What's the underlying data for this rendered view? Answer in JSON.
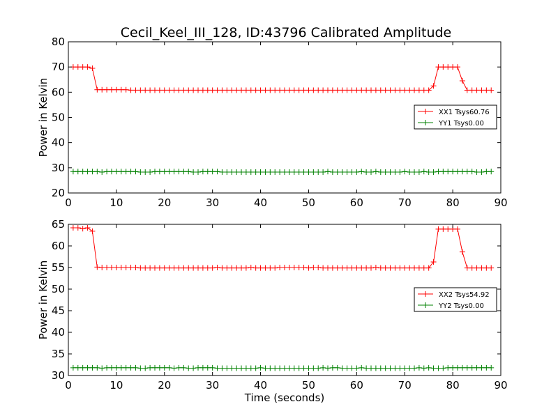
{
  "title": "Cecil_Keel_III_128, ID:43796 Calibrated Amplitude",
  "chart_data": [
    {
      "type": "line",
      "xlabel": "",
      "ylabel": "Power in Kelvin",
      "xlim": [
        0,
        90
      ],
      "ylim": [
        20,
        80
      ],
      "xticks": [
        0,
        10,
        20,
        30,
        40,
        50,
        60,
        70,
        80,
        90
      ],
      "yticks": [
        20,
        30,
        40,
        50,
        60,
        70,
        80
      ],
      "grid": false,
      "legend_position": "center-right",
      "x": [
        1,
        2,
        3,
        4,
        5,
        6,
        7,
        8,
        9,
        10,
        11,
        12,
        13,
        14,
        15,
        16,
        17,
        18,
        19,
        20,
        21,
        22,
        23,
        24,
        25,
        26,
        27,
        28,
        29,
        30,
        31,
        32,
        33,
        34,
        35,
        36,
        37,
        38,
        39,
        40,
        41,
        42,
        43,
        44,
        45,
        46,
        47,
        48,
        49,
        50,
        51,
        52,
        53,
        54,
        55,
        56,
        57,
        58,
        59,
        60,
        61,
        62,
        63,
        64,
        65,
        66,
        67,
        68,
        69,
        70,
        71,
        72,
        73,
        74,
        75,
        76,
        77,
        78,
        79,
        80,
        81,
        82,
        83,
        84,
        85,
        86,
        87,
        88
      ],
      "series": [
        {
          "name": "XX1 Tsys60.76",
          "color": "#ff0000",
          "values": [
            70,
            70,
            70,
            70,
            69.5,
            61,
            61,
            61,
            61,
            61,
            61,
            61,
            60.8,
            60.8,
            60.8,
            60.8,
            60.8,
            60.8,
            60.8,
            60.8,
            60.8,
            60.8,
            60.8,
            60.8,
            60.8,
            60.8,
            60.8,
            60.8,
            60.8,
            60.8,
            60.8,
            60.8,
            60.8,
            60.8,
            60.8,
            60.8,
            60.8,
            60.8,
            60.8,
            60.8,
            60.8,
            60.8,
            60.8,
            60.8,
            60.8,
            60.8,
            60.8,
            60.8,
            60.8,
            60.8,
            60.8,
            60.8,
            60.8,
            60.8,
            60.8,
            60.8,
            60.8,
            60.8,
            60.8,
            60.8,
            60.8,
            60.8,
            60.8,
            60.8,
            60.8,
            60.8,
            60.8,
            60.8,
            60.8,
            60.8,
            60.8,
            60.8,
            60.8,
            60.8,
            60.8,
            62.5,
            70,
            70,
            70,
            70,
            70,
            64.5,
            60.8,
            60.8,
            60.8,
            60.8,
            60.8,
            60.8
          ]
        },
        {
          "name": "YY1 Tsys0.00",
          "color": "#008000",
          "values": [
            28.5,
            28.5,
            28.5,
            28.5,
            28.5,
            28.5,
            28.3,
            28.5,
            28.5,
            28.5,
            28.5,
            28.5,
            28.5,
            28.5,
            28.3,
            28.3,
            28.3,
            28.5,
            28.5,
            28.5,
            28.5,
            28.5,
            28.5,
            28.5,
            28.5,
            28.3,
            28.3,
            28.5,
            28.5,
            28.5,
            28.5,
            28.3,
            28.3,
            28.3,
            28.3,
            28.3,
            28.3,
            28.3,
            28.3,
            28.3,
            28.3,
            28.3,
            28.3,
            28.3,
            28.3,
            28.3,
            28.3,
            28.3,
            28.3,
            28.3,
            28.3,
            28.3,
            28.3,
            28.5,
            28.3,
            28.3,
            28.3,
            28.3,
            28.3,
            28.3,
            28.5,
            28.3,
            28.3,
            28.5,
            28.3,
            28.3,
            28.3,
            28.3,
            28.3,
            28.5,
            28.3,
            28.3,
            28.3,
            28.5,
            28.3,
            28.3,
            28.5,
            28.5,
            28.5,
            28.5,
            28.5,
            28.5,
            28.5,
            28.5,
            28.3,
            28.3,
            28.5,
            28.5
          ]
        }
      ]
    },
    {
      "type": "line",
      "xlabel": "Time (seconds)",
      "ylabel": "Power in Kelvin",
      "xlim": [
        0,
        90
      ],
      "ylim": [
        30,
        65
      ],
      "xticks": [
        0,
        10,
        20,
        30,
        40,
        50,
        60,
        70,
        80,
        90
      ],
      "yticks": [
        30,
        35,
        40,
        45,
        50,
        55,
        60,
        65
      ],
      "grid": false,
      "legend_position": "center-right",
      "x": [
        1,
        2,
        3,
        4,
        5,
        6,
        7,
        8,
        9,
        10,
        11,
        12,
        13,
        14,
        15,
        16,
        17,
        18,
        19,
        20,
        21,
        22,
        23,
        24,
        25,
        26,
        27,
        28,
        29,
        30,
        31,
        32,
        33,
        34,
        35,
        36,
        37,
        38,
        39,
        40,
        41,
        42,
        43,
        44,
        45,
        46,
        47,
        48,
        49,
        50,
        51,
        52,
        53,
        54,
        55,
        56,
        57,
        58,
        59,
        60,
        61,
        62,
        63,
        64,
        65,
        66,
        67,
        68,
        69,
        70,
        71,
        72,
        73,
        74,
        75,
        76,
        77,
        78,
        79,
        80,
        81,
        82,
        83,
        84,
        85,
        86,
        87,
        88
      ],
      "series": [
        {
          "name": "XX2 Tsys54.92",
          "color": "#ff0000",
          "values": [
            64.2,
            64.2,
            64.0,
            64.2,
            63.4,
            55.1,
            55.0,
            55.0,
            55.0,
            55.0,
            55.0,
            55.0,
            55.0,
            55.0,
            54.9,
            54.9,
            54.9,
            54.9,
            54.9,
            54.9,
            54.9,
            54.9,
            54.9,
            54.9,
            54.9,
            54.9,
            54.9,
            54.9,
            54.9,
            54.9,
            55.0,
            54.9,
            54.9,
            54.9,
            54.9,
            54.9,
            54.9,
            55.0,
            54.9,
            54.9,
            54.9,
            54.9,
            54.9,
            55.0,
            55.0,
            55.0,
            55.0,
            55.0,
            55.0,
            54.9,
            55.0,
            55.0,
            54.9,
            54.9,
            54.9,
            54.9,
            54.9,
            54.9,
            54.9,
            54.9,
            54.9,
            54.9,
            54.9,
            55.0,
            54.9,
            54.9,
            54.9,
            54.9,
            54.9,
            54.9,
            54.9,
            54.9,
            54.9,
            54.9,
            54.9,
            56.3,
            63.9,
            63.9,
            63.9,
            63.9,
            63.9,
            58.6,
            54.9,
            54.9,
            54.9,
            54.9,
            54.9,
            54.9
          ]
        },
        {
          "name": "YY2 Tsys0.00",
          "color": "#008000",
          "values": [
            31.8,
            31.8,
            31.8,
            31.8,
            31.8,
            31.8,
            31.7,
            31.8,
            31.8,
            31.8,
            31.8,
            31.8,
            31.8,
            31.8,
            31.7,
            31.7,
            31.8,
            31.8,
            31.8,
            31.8,
            31.8,
            31.7,
            31.8,
            31.8,
            31.7,
            31.7,
            31.8,
            31.8,
            31.8,
            31.8,
            31.7,
            31.7,
            31.7,
            31.7,
            31.7,
            31.7,
            31.7,
            31.7,
            31.7,
            31.8,
            31.7,
            31.7,
            31.7,
            31.7,
            31.7,
            31.7,
            31.7,
            31.7,
            31.7,
            31.7,
            31.7,
            31.7,
            31.8,
            31.7,
            31.8,
            31.8,
            31.7,
            31.7,
            31.7,
            31.7,
            31.8,
            31.7,
            31.7,
            31.7,
            31.7,
            31.7,
            31.7,
            31.7,
            31.7,
            31.7,
            31.7,
            31.7,
            31.8,
            31.7,
            31.8,
            31.7,
            31.7,
            31.7,
            31.8,
            31.8,
            31.8,
            31.8,
            31.8,
            31.8,
            31.8,
            31.8,
            31.8,
            31.8
          ]
        }
      ]
    }
  ]
}
